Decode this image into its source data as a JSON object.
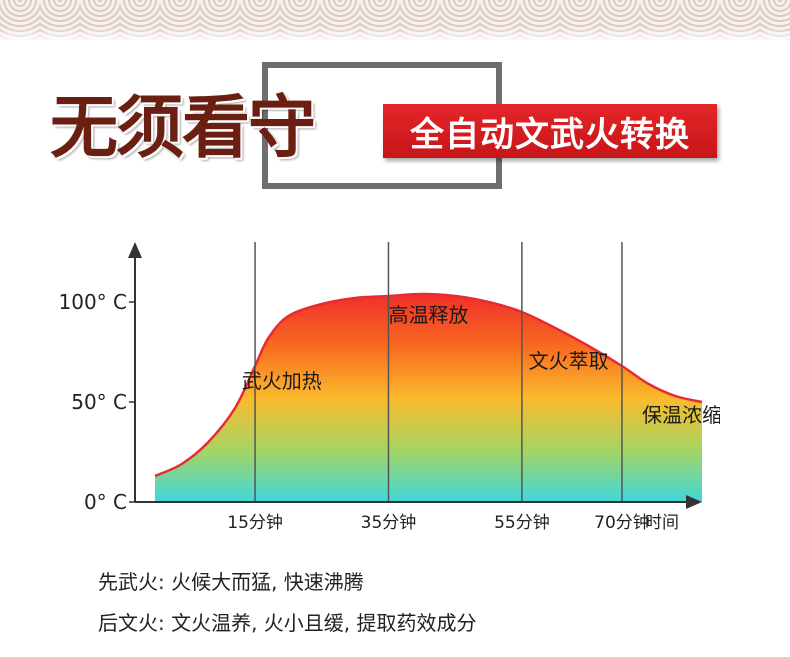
{
  "header": {
    "title": "无须看守",
    "banner": "全自动文武火转换"
  },
  "chart_data": {
    "type": "area",
    "title": "",
    "xlabel": "时间",
    "ylabel": "",
    "y_ticks": [
      {
        "value": 0,
        "label": "0° C"
      },
      {
        "value": 50,
        "label": "50° C"
      },
      {
        "value": 100,
        "label": "100° C"
      }
    ],
    "x_ticks": [
      {
        "value": 15,
        "label": "15分钟"
      },
      {
        "value": 35,
        "label": "35分钟"
      },
      {
        "value": 55,
        "label": "55分钟"
      },
      {
        "value": 70,
        "label": "70分钟"
      }
    ],
    "xlim": [
      -3,
      82
    ],
    "ylim": [
      0,
      130
    ],
    "points": [
      {
        "x": 0,
        "y": 13
      },
      {
        "x": 4,
        "y": 19
      },
      {
        "x": 8,
        "y": 30
      },
      {
        "x": 12,
        "y": 47
      },
      {
        "x": 15,
        "y": 68
      },
      {
        "x": 17,
        "y": 82
      },
      {
        "x": 20,
        "y": 93
      },
      {
        "x": 25,
        "y": 99
      },
      {
        "x": 30,
        "y": 102
      },
      {
        "x": 35,
        "y": 103
      },
      {
        "x": 40,
        "y": 104
      },
      {
        "x": 45,
        "y": 103
      },
      {
        "x": 50,
        "y": 100
      },
      {
        "x": 55,
        "y": 95
      },
      {
        "x": 60,
        "y": 87
      },
      {
        "x": 65,
        "y": 78
      },
      {
        "x": 70,
        "y": 68
      },
      {
        "x": 74,
        "y": 59
      },
      {
        "x": 78,
        "y": 53
      },
      {
        "x": 82,
        "y": 50
      }
    ],
    "annotations": [
      {
        "text": "武火加热",
        "x": 19,
        "y": 57
      },
      {
        "text": "高温释放",
        "x": 41,
        "y": 90
      },
      {
        "text": "文火萃取",
        "x": 62,
        "y": 67
      },
      {
        "text": "保温浓缩",
        "x": 79,
        "y": 40
      }
    ],
    "gradient": [
      "#ef2f2a",
      "#f86a20",
      "#fbba2c",
      "#a6d563",
      "#40d6dc"
    ],
    "curve_color": "#e62b32"
  },
  "notes": [
    "先武火: 火候大而猛, 快速沸腾",
    "后文火: 文火温养, 火小且缓,  提取药效成分"
  ]
}
